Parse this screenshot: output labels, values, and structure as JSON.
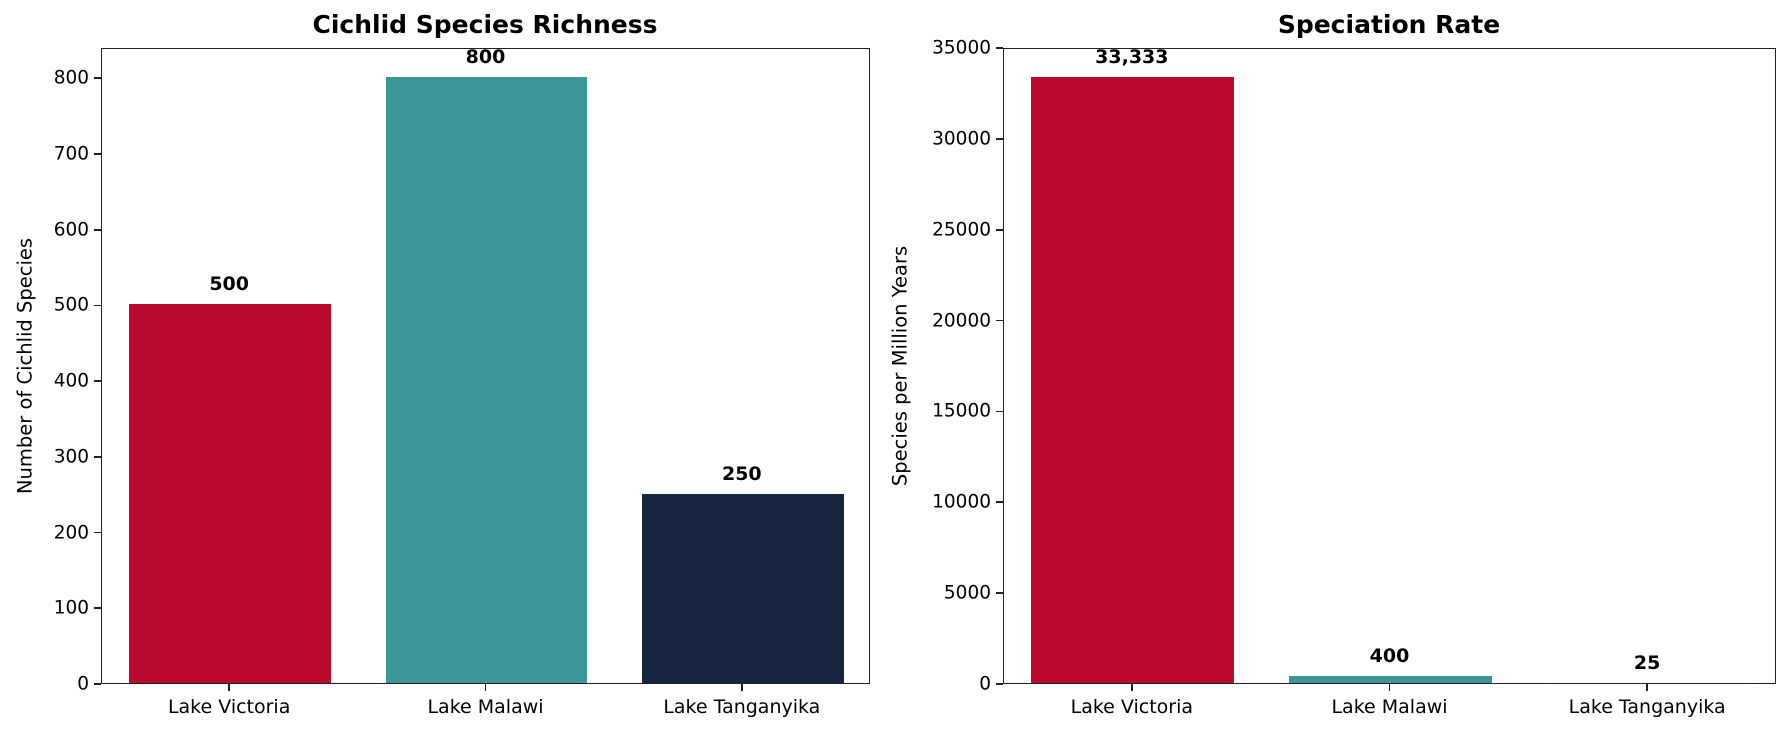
{
  "chart_data": [
    {
      "type": "bar",
      "title": "Cichlid Species Richness",
      "xlabel": "",
      "ylabel": "Number of Cichlid Species",
      "categories": [
        "Lake Victoria",
        "Lake Malawi",
        "Lake Tanganyika"
      ],
      "values": [
        500,
        800,
        250
      ],
      "value_labels": [
        "500",
        "800",
        "250"
      ],
      "colors": [
        "#bc0a2f",
        "#3d9696",
        "#162540"
      ],
      "ylim": [
        0,
        840
      ],
      "yticks": [
        0,
        100,
        200,
        300,
        400,
        500,
        600,
        700,
        800
      ],
      "grid": false,
      "legend": null
    },
    {
      "type": "bar",
      "title": "Speciation Rate",
      "xlabel": "",
      "ylabel": "Species per Million Years",
      "categories": [
        "Lake Victoria",
        "Lake Malawi",
        "Lake Tanganyika"
      ],
      "values": [
        33333,
        400,
        25
      ],
      "value_labels": [
        "33,333",
        "400",
        "25"
      ],
      "colors": [
        "#bc0a2f",
        "#3d9696",
        "#162540"
      ],
      "ylim": [
        0,
        35000
      ],
      "yticks": [
        0,
        5000,
        10000,
        15000,
        20000,
        25000,
        30000,
        35000
      ],
      "grid": false,
      "legend": null
    }
  ]
}
